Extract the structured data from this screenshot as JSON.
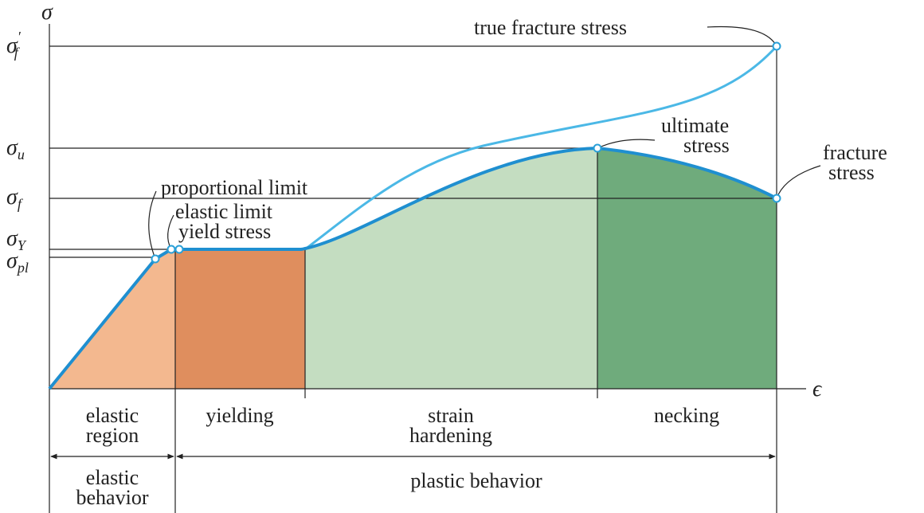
{
  "axes": {
    "y_label": "σ",
    "x_label": "ϵ"
  },
  "stress_levels": [
    {
      "symbol": "σ",
      "sub": "f",
      "sup": "′"
    },
    {
      "symbol": "σ",
      "sub": "u"
    },
    {
      "symbol": "σ",
      "sub": "f"
    },
    {
      "symbol": "σ",
      "sub": "Y"
    },
    {
      "symbol": "σ",
      "sub": "pl"
    }
  ],
  "annotations": {
    "true_fracture_stress": "true fracture stress",
    "ultimate_stress": [
      "ultimate",
      "stress"
    ],
    "fracture_stress": [
      "fracture",
      "stress"
    ],
    "proportional_limit": "proportional limit",
    "elastic_limit": "elastic limit",
    "yield_stress": "yield stress"
  },
  "regions": [
    [
      "elastic",
      "region"
    ],
    [
      "yielding"
    ],
    [
      "strain",
      "hardening"
    ],
    [
      "necking"
    ]
  ],
  "behavior": [
    [
      "elastic",
      "behavior"
    ],
    [
      "plastic behavior"
    ]
  ]
}
